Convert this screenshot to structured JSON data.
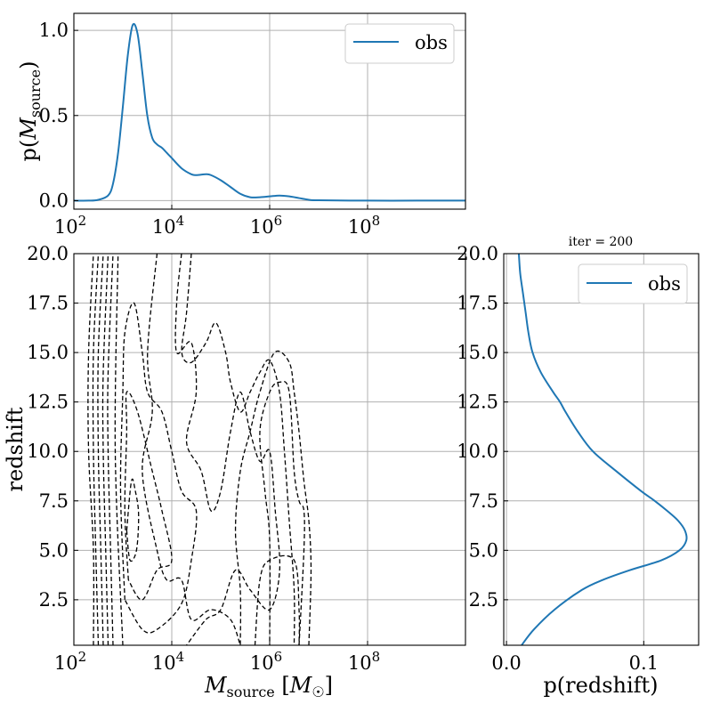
{
  "chart_data": [
    {
      "id": "mass_marginal",
      "type": "line",
      "title": "",
      "xlabel": "",
      "ylabel": "p(M_source)",
      "x_scale": "log",
      "xlim": [
        100,
        10000000000
      ],
      "ylim": [
        -0.05,
        1.1
      ],
      "x_ticks": [
        {
          "value": 100,
          "base": "10",
          "exp": "2"
        },
        {
          "value": 10000,
          "base": "10",
          "exp": "4"
        },
        {
          "value": 1000000,
          "base": "10",
          "exp": "6"
        },
        {
          "value": 100000000,
          "base": "10",
          "exp": "8"
        }
      ],
      "y_ticks": [
        {
          "value": 0.0,
          "label": "0.0"
        },
        {
          "value": 0.5,
          "label": "0.5"
        },
        {
          "value": 1.0,
          "label": "1.0"
        }
      ],
      "grid": true,
      "legend": {
        "position": "top-right",
        "entries": [
          "obs"
        ]
      },
      "series": [
        {
          "name": "obs",
          "color": "#1f77b4",
          "x": [
            100,
            200,
            316,
            500,
            631,
            800,
            1000,
            1259,
            1585,
            2000,
            2512,
            3162,
            3981,
            5012,
            6310,
            7943,
            10000,
            15850,
            25120,
            31620,
            50120,
            63100,
            100000,
            158500,
            251200,
            398100,
            630900,
            1000000,
            1585000,
            2512000,
            3981000,
            6310000,
            10000000,
            100000000,
            1000000000,
            10000000000
          ],
          "y": [
            0.0,
            0.0,
            0.005,
            0.03,
            0.1,
            0.28,
            0.55,
            0.85,
            1.03,
            0.98,
            0.75,
            0.5,
            0.37,
            0.33,
            0.31,
            0.28,
            0.25,
            0.19,
            0.155,
            0.15,
            0.155,
            0.15,
            0.12,
            0.08,
            0.04,
            0.02,
            0.02,
            0.025,
            0.03,
            0.025,
            0.015,
            0.005,
            0.002,
            0.0,
            0.0,
            0.0
          ]
        }
      ]
    },
    {
      "id": "joint_contours",
      "type": "contour",
      "title": "",
      "xlabel": "M_source [M_sun]",
      "ylabel": "redshift",
      "x_scale": "log",
      "xlim": [
        100,
        10000000000
      ],
      "ylim": [
        0.2,
        20.0
      ],
      "x_ticks": [
        {
          "value": 100,
          "base": "10",
          "exp": "2"
        },
        {
          "value": 10000,
          "base": "10",
          "exp": "4"
        },
        {
          "value": 1000000,
          "base": "10",
          "exp": "6"
        },
        {
          "value": 100000000,
          "base": "10",
          "exp": "8"
        }
      ],
      "y_ticks": [
        {
          "value": 2.5,
          "label": "2.5"
        },
        {
          "value": 5.0,
          "label": "5.0"
        },
        {
          "value": 7.5,
          "label": "7.5"
        },
        {
          "value": 10.0,
          "label": "10.0"
        },
        {
          "value": 12.5,
          "label": "12.5"
        },
        {
          "value": 15.0,
          "label": "15.0"
        },
        {
          "value": 17.5,
          "label": "17.5"
        },
        {
          "value": 20.0,
          "label": "20.0"
        }
      ],
      "grid": true,
      "contours": [
        {
          "level": 1,
          "points": [
            [
              251,
              0.2
            ],
            [
              251,
              5
            ],
            [
              200,
              10
            ],
            [
              200,
              15
            ],
            [
              251,
              20
            ]
          ]
        },
        {
          "level": 2,
          "points": [
            [
              316,
              0.2
            ],
            [
              280,
              5
            ],
            [
              251,
              10
            ],
            [
              251,
              15
            ],
            [
              316,
              20
            ]
          ]
        },
        {
          "level": 3,
          "points": [
            [
              398,
              0.2
            ],
            [
              355,
              5
            ],
            [
              316,
              10
            ],
            [
              316,
              15
            ],
            [
              398,
              20
            ]
          ]
        },
        {
          "level": 4,
          "points": [
            [
              501,
              0.2
            ],
            [
              447,
              5
            ],
            [
              398,
              10
            ],
            [
              398,
              14
            ],
            [
              501,
              20
            ]
          ]
        },
        {
          "level": 5,
          "points": [
            [
              631,
              0.2
            ],
            [
              562,
              5
            ],
            [
              501,
              10
            ],
            [
              501,
              14
            ],
            [
              631,
              20
            ]
          ]
        },
        {
          "level": 6,
          "points": [
            [
              1200,
              6.0
            ],
            [
              1500,
              8.5
            ],
            [
              1800,
              8.0
            ],
            [
              2100,
              6.8
            ],
            [
              1900,
              5.0
            ],
            [
              1400,
              4.5
            ],
            [
              1200,
              6.0
            ]
          ]
        },
        {
          "level": 7,
          "points": [
            [
              1300,
              3.5
            ],
            [
              1100,
              7
            ],
            [
              1200,
              11
            ],
            [
              1200,
              13
            ],
            [
              2000,
              12
            ],
            [
              4000,
              9
            ],
            [
              6300,
              7
            ],
            [
              10000,
              4.5
            ],
            [
              5000,
              4
            ],
            [
              2500,
              2.5
            ],
            [
              1300,
              3.5
            ]
          ]
        },
        {
          "level": 8,
          "points": [
            [
              1100,
              2.5
            ],
            [
              900,
              8
            ],
            [
              1000,
              13
            ],
            [
              1100,
              16
            ],
            [
              1700,
              17.5
            ],
            [
              2500,
              15
            ],
            [
              3200,
              13
            ],
            [
              6300,
              12
            ],
            [
              10000,
              10
            ],
            [
              15800,
              8
            ],
            [
              31600,
              7
            ],
            [
              25100,
              4.5
            ],
            [
              15800,
              2.3
            ],
            [
              5000,
              1
            ],
            [
              2500,
              1
            ],
            [
              1100,
              2.5
            ]
          ]
        },
        {
          "level": 9,
          "points": [
            [
              1000,
              0.2
            ],
            [
              700,
              10
            ],
            [
              800,
              20
            ]
          ]
        },
        {
          "level": 10,
          "points": [
            [
              5000,
              20
            ],
            [
              3200,
              15
            ],
            [
              4000,
              12
            ],
            [
              2500,
              9
            ],
            [
              5000,
              5
            ],
            [
              7900,
              3.5
            ],
            [
              15800,
              3.5
            ],
            [
              25100,
              1.5
            ],
            [
              63100,
              2
            ],
            [
              158500,
              1.5
            ],
            [
              251200,
              0.2
            ]
          ]
        },
        {
          "level": 11,
          "points": [
            [
              15800,
              20
            ],
            [
              12600,
              17.5
            ],
            [
              12600,
              15
            ],
            [
              25100,
              15.5
            ],
            [
              31600,
              13
            ],
            [
              20000,
              10.5
            ],
            [
              40000,
              9
            ],
            [
              63100,
              7
            ],
            [
              100000,
              8
            ],
            [
              158500,
              11
            ],
            [
              251200,
              13
            ],
            [
              398100,
              11
            ],
            [
              631000,
              9.5
            ],
            [
              1000000,
              10
            ],
            [
              1300000,
              7
            ],
            [
              1600000,
              4
            ],
            [
              1000000,
              2
            ],
            [
              400000,
              3
            ],
            [
              200000,
              4
            ],
            [
              100000,
              2
            ],
            [
              50000,
              1.5
            ],
            [
              20000,
              0.2
            ]
          ]
        },
        {
          "level": 12,
          "points": [
            [
              25100,
              20
            ],
            [
              20000,
              17
            ],
            [
              16000,
              15
            ],
            [
              25100,
              14.5
            ],
            [
              50100,
              15.5
            ],
            [
              79400,
              16.5
            ],
            [
              126000,
              15
            ],
            [
              158500,
              13.5
            ],
            [
              251200,
              12
            ],
            [
              398100,
              13
            ],
            [
              631000,
              14
            ],
            [
              1000000,
              14.6
            ],
            [
              1585000,
              13
            ],
            [
              2000000,
              10
            ],
            [
              2512000,
              6.5
            ],
            [
              3162000,
              3
            ],
            [
              3162000,
              0.2
            ]
          ]
        },
        {
          "level": 13,
          "points": [
            [
              501200,
              0.2
            ],
            [
              631000,
              3.5
            ],
            [
              1000000,
              4.5
            ],
            [
              3162000,
              4.5
            ],
            [
              3981000,
              2
            ],
            [
              3981000,
              0.2
            ]
          ]
        },
        {
          "level": 14,
          "points": [
            [
              3981000,
              0.2
            ],
            [
              5012000,
              5
            ],
            [
              5012000,
              7
            ],
            [
              3981000,
              7.5
            ],
            [
              3162000,
              9
            ],
            [
              2512000,
              13
            ],
            [
              1585000,
              13.5
            ],
            [
              1000000,
              13
            ],
            [
              631000,
              11
            ],
            [
              800000,
              8
            ],
            [
              1000000,
              5.5
            ],
            [
              1000000,
              0.2
            ]
          ]
        },
        {
          "level": 15,
          "points": [
            [
              6310000,
              0.2
            ],
            [
              7000000,
              4
            ],
            [
              6310000,
              6.5
            ],
            [
              5012000,
              8.5
            ],
            [
              3981000,
              11
            ],
            [
              3162000,
              13
            ],
            [
              2512000,
              14.5
            ],
            [
              1259000,
              15
            ],
            [
              631000,
              13
            ],
            [
              398100,
              11
            ],
            [
              251200,
              9
            ],
            [
              200000,
              6
            ],
            [
              251200,
              3
            ],
            [
              251200,
              0.2
            ]
          ]
        }
      ]
    },
    {
      "id": "redshift_marginal",
      "type": "line",
      "title": "iter = 200",
      "xlabel": "p(redshift)",
      "ylabel": "",
      "xlim": [
        -0.002,
        0.14
      ],
      "ylim": [
        0.2,
        20.0
      ],
      "x_ticks": [
        {
          "value": 0.0,
          "label": "0.0"
        },
        {
          "value": 0.1,
          "label": "0.1"
        }
      ],
      "y_ticks": [
        {
          "value": 2.5,
          "label": "2.5"
        },
        {
          "value": 5.0,
          "label": "5.0"
        },
        {
          "value": 7.5,
          "label": "7.5"
        },
        {
          "value": 10.0,
          "label": "10.0"
        },
        {
          "value": 12.5,
          "label": "12.5"
        },
        {
          "value": 15.0,
          "label": "15.0"
        },
        {
          "value": 17.5,
          "label": "17.5"
        },
        {
          "value": 20.0,
          "label": "20.0"
        }
      ],
      "grid": true,
      "legend": {
        "position": "top-right",
        "entries": [
          "obs"
        ]
      },
      "series": [
        {
          "name": "obs",
          "color": "#1f77b4",
          "redshift": [
            0.2,
            1.0,
            2.0,
            3.0,
            3.5,
            4.0,
            4.5,
            5.0,
            5.5,
            6.0,
            6.5,
            7.0,
            7.5,
            8.0,
            9.0,
            10.0,
            11.0,
            12.0,
            12.5,
            13.0,
            14.0,
            15.0,
            16.0,
            17.0,
            18.0,
            19.0,
            20.0
          ],
          "density": [
            0.011,
            0.02,
            0.035,
            0.055,
            0.07,
            0.09,
            0.113,
            0.126,
            0.131,
            0.13,
            0.125,
            0.117,
            0.108,
            0.098,
            0.08,
            0.063,
            0.052,
            0.043,
            0.039,
            0.034,
            0.025,
            0.019,
            0.016,
            0.014,
            0.012,
            0.01,
            0.009
          ]
        }
      ]
    }
  ]
}
